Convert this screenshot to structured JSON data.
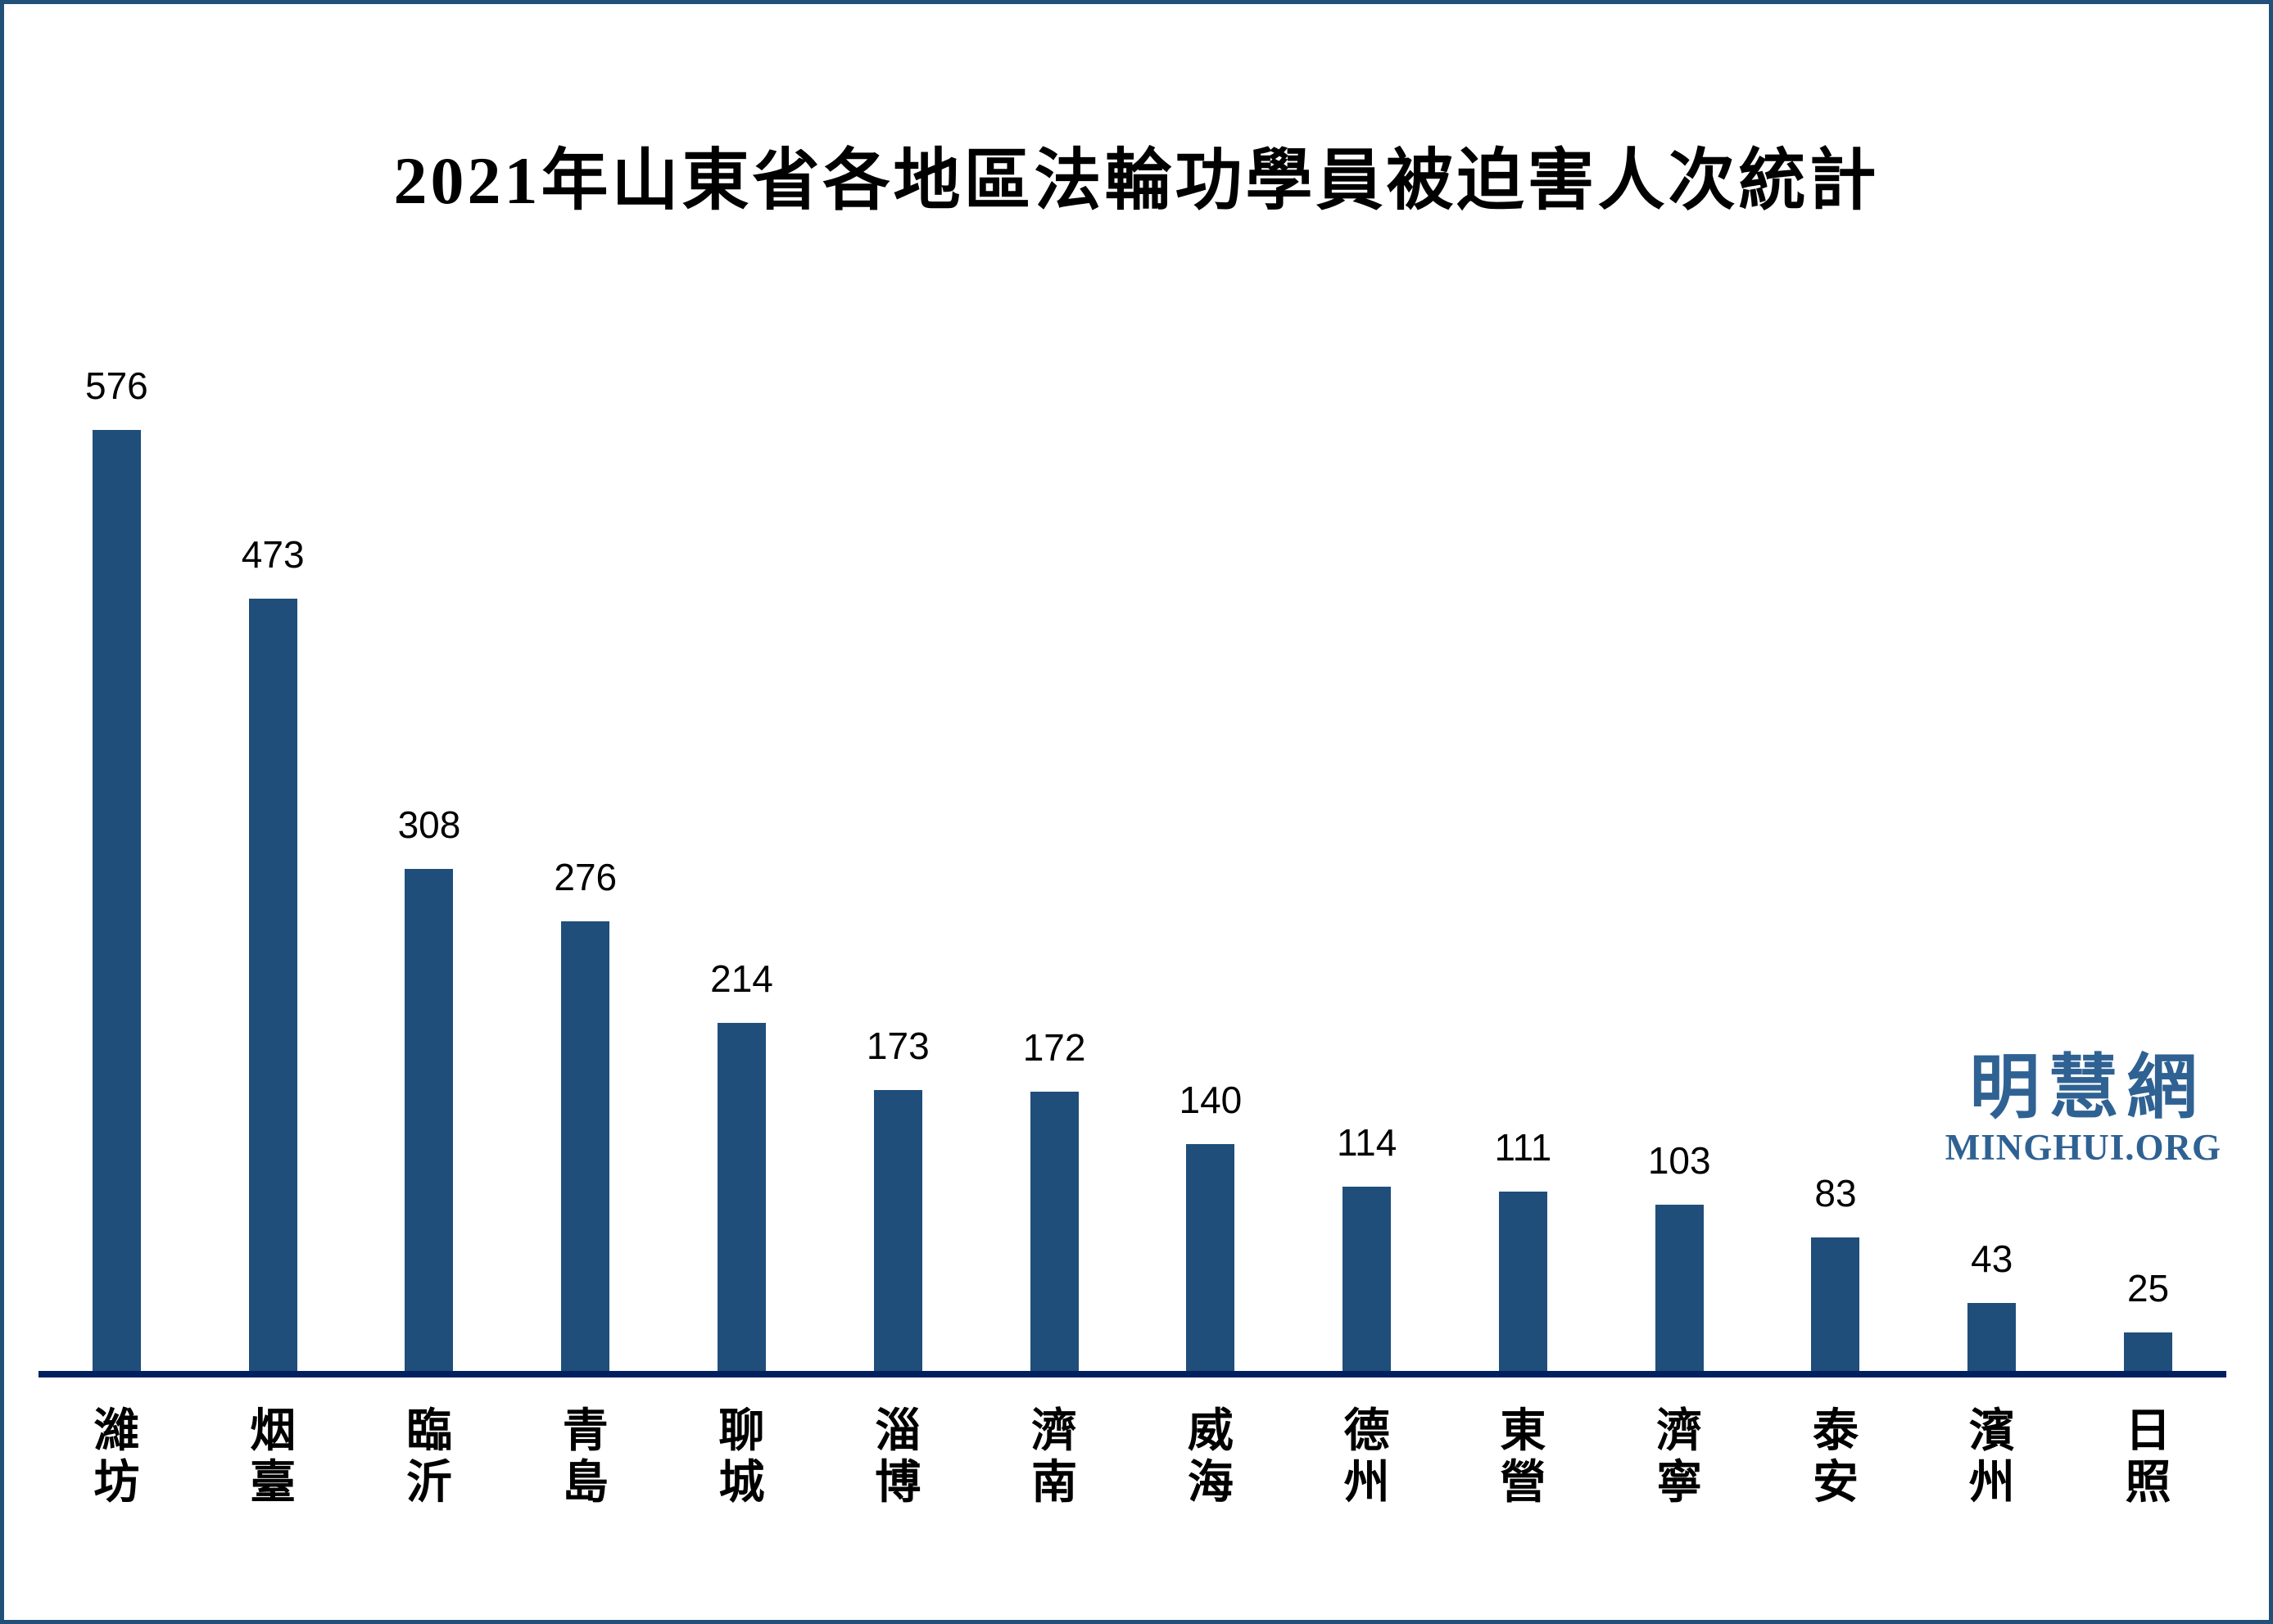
{
  "page": {
    "background": "#FFFFFF",
    "frame_border_color": "#215079"
  },
  "chart_data": {
    "type": "bar",
    "title": "2021年山東省各地區法輪功學員被迫害人次統計",
    "categories": [
      "濰坊",
      "烟臺",
      "臨沂",
      "青島",
      "聊城",
      "淄博",
      "濟南",
      "威海",
      "德州",
      "東營",
      "濟寧",
      "泰安",
      "濱州",
      "日照"
    ],
    "values": [
      576,
      473,
      308,
      276,
      214,
      173,
      172,
      140,
      114,
      111,
      103,
      83,
      43,
      25
    ],
    "xlabel": "",
    "ylabel": "",
    "ylim": [
      0,
      600
    ],
    "grid": false,
    "legend": "none",
    "data_labels_shown": true,
    "bar_color": "#1F4E7A",
    "axis_line_color": "#012060",
    "value_label_color": "#000000",
    "category_label_color": "#000000"
  },
  "watermark": {
    "chinese": "明慧網",
    "english": "MINGHUI.ORG",
    "color": "#2F6293"
  }
}
